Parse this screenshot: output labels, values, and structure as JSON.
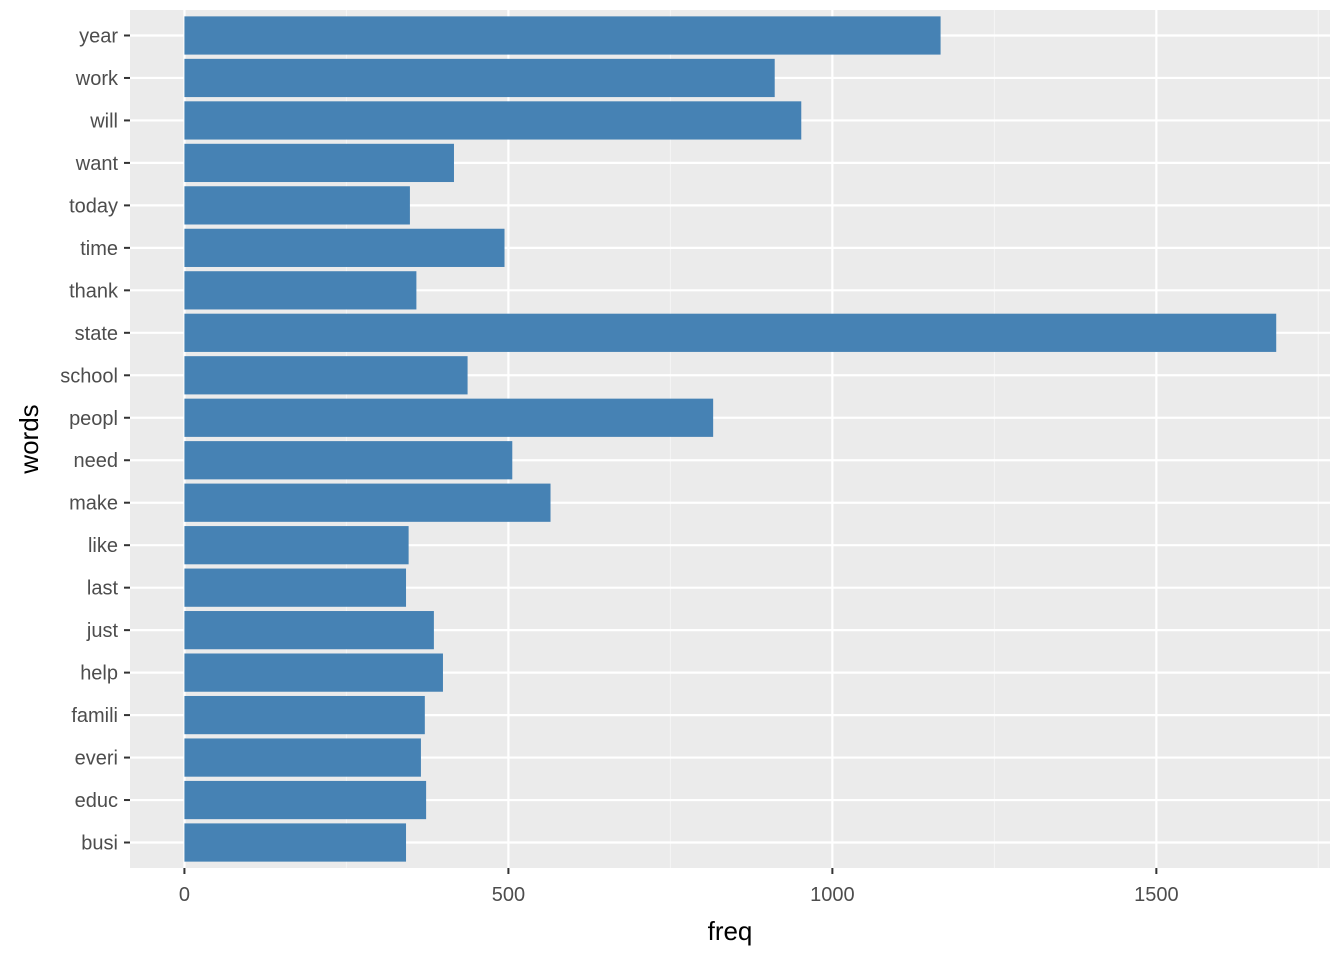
{
  "chart_data": {
    "type": "bar",
    "orientation": "horizontal",
    "xlabel": "freq",
    "ylabel": "words",
    "categories": [
      "busi",
      "educ",
      "everi",
      "famili",
      "help",
      "just",
      "last",
      "like",
      "make",
      "need",
      "peopl",
      "school",
      "state",
      "thank",
      "time",
      "today",
      "want",
      "will",
      "work",
      "year"
    ],
    "values": [
      342,
      373,
      365,
      371,
      399,
      385,
      342,
      346,
      565,
      506,
      816,
      437,
      1685,
      358,
      494,
      348,
      416,
      952,
      911,
      1167
    ],
    "xlim": [
      -84,
      1768
    ],
    "xticks": [
      0,
      500,
      1000,
      1500
    ],
    "xtick_labels": [
      "0",
      "500",
      "1000",
      "1500"
    ],
    "grid": true,
    "legend": "none",
    "colors": {
      "bar": "#4682B4",
      "panel": "#EBEBEB",
      "grid_major": "#FFFFFF",
      "grid_minor": "#F5F5F5",
      "tick_text": "#4D4D4D",
      "axis_title": "#000000"
    }
  }
}
